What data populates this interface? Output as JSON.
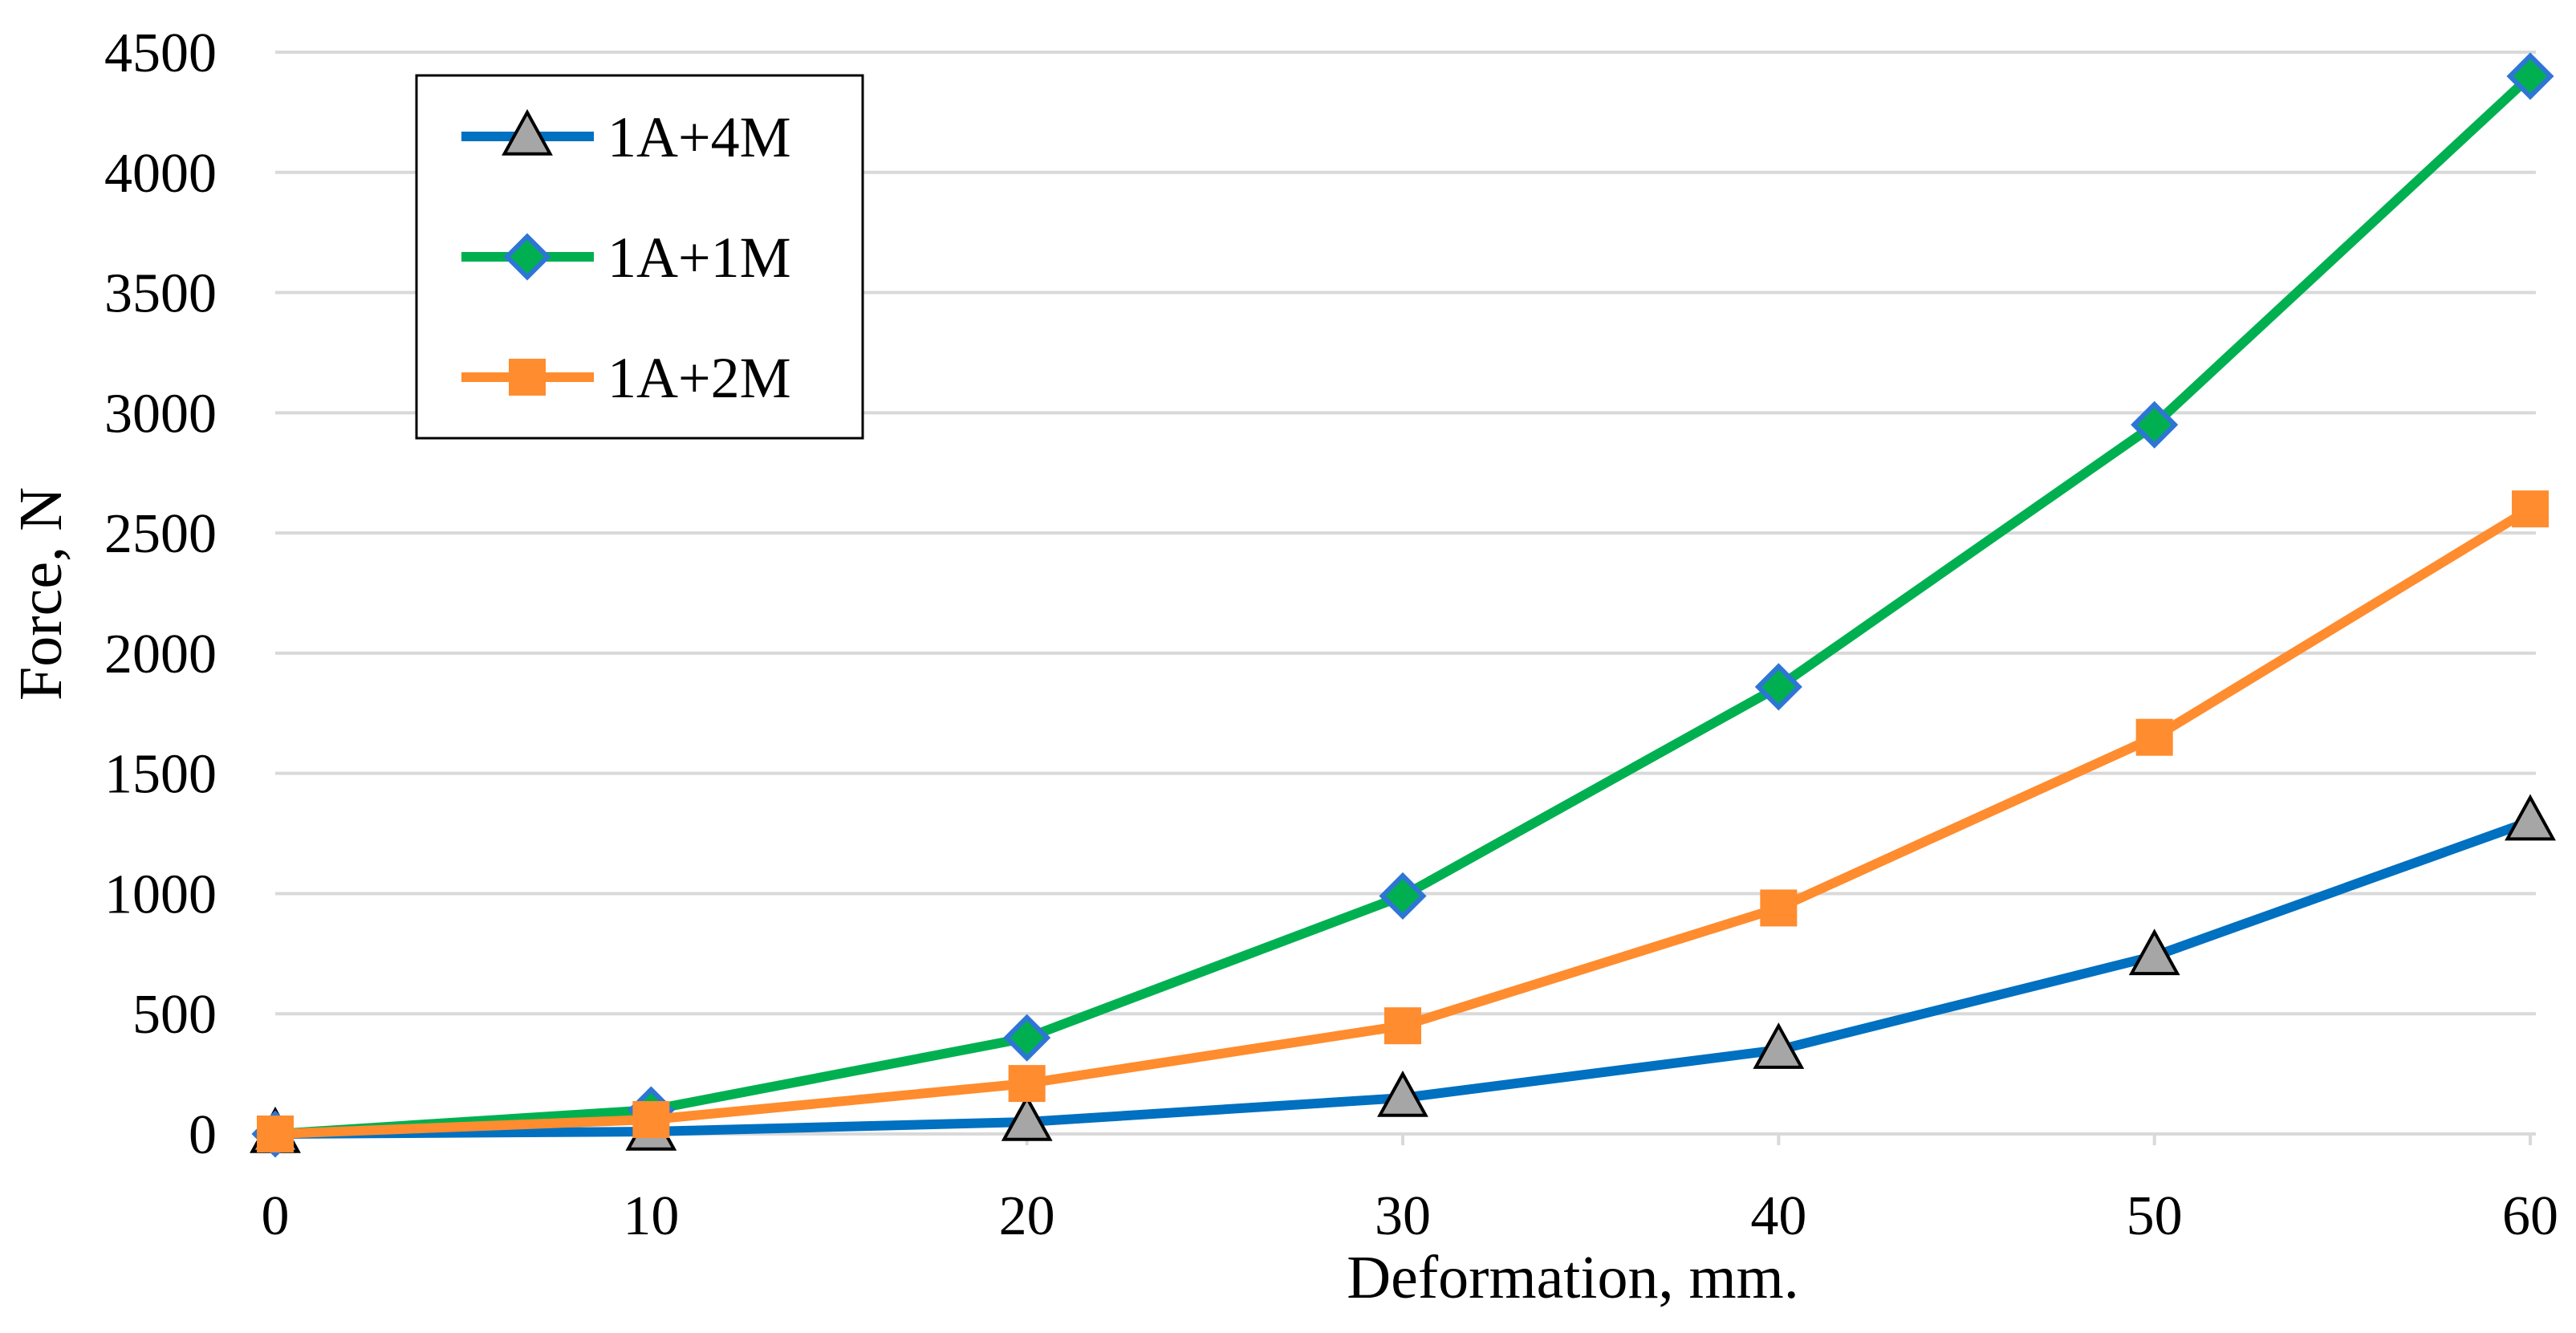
{
  "chart_data": {
    "type": "line",
    "title": "",
    "xlabel": "Deformation, mm.",
    "ylabel": "Force, N",
    "x": [
      0,
      10,
      20,
      30,
      40,
      50,
      60
    ],
    "x_ticks": [
      "0",
      "10",
      "20",
      "30",
      "40",
      "50",
      "60"
    ],
    "y_ticks": [
      "0",
      "500",
      "1000",
      "1500",
      "2000",
      "2500",
      "3000",
      "3500",
      "4000",
      "4500"
    ],
    "xlim": [
      0,
      60
    ],
    "ylim": [
      0,
      4500
    ],
    "grid": "horizontal",
    "legend_position": "top-left",
    "series": [
      {
        "name": "1A+4M",
        "color": "#0070c0",
        "marker": "triangle",
        "marker_color": "#a6a6a6",
        "values": [
          0,
          10,
          50,
          150,
          350,
          740,
          1300
        ]
      },
      {
        "name": "1A+1M",
        "color": "#00b050",
        "marker": "diamond",
        "marker_color": "#00b050",
        "marker_edge": "#2e75d6",
        "values": [
          0,
          100,
          400,
          990,
          1860,
          2950,
          4400
        ]
      },
      {
        "name": "1A+2M",
        "color": "#ff8c2e",
        "marker": "square",
        "marker_color": "#ff8c2e",
        "values": [
          0,
          60,
          210,
          450,
          940,
          1650,
          2600
        ]
      }
    ]
  }
}
